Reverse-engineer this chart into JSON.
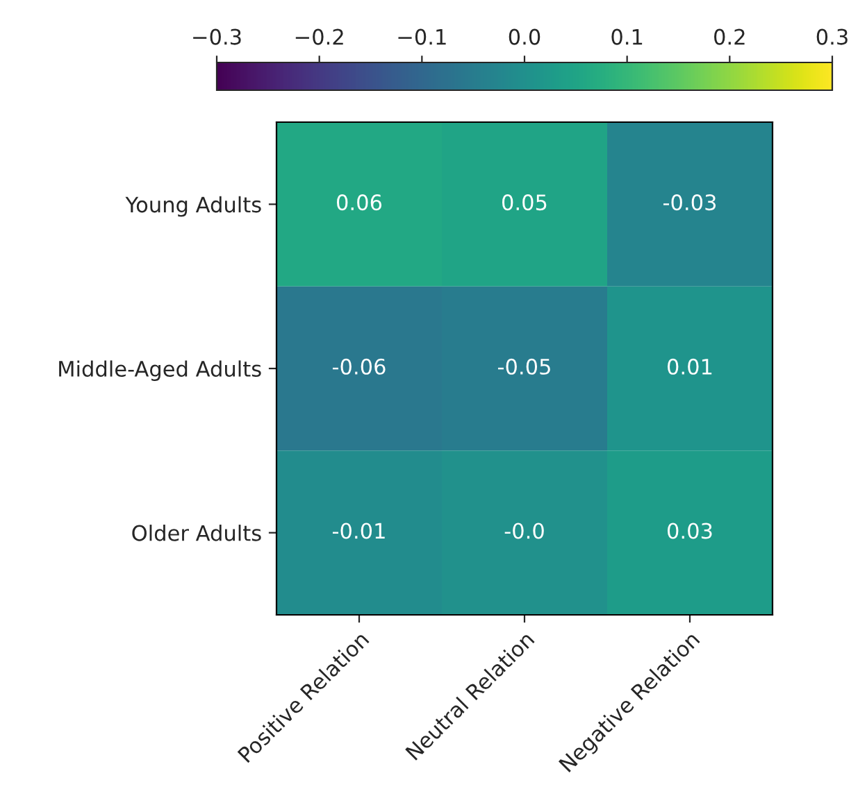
{
  "chart_data": {
    "type": "heatmap",
    "categories": [
      "Positive Relation",
      "Neutral Relation",
      "Negative Relation"
    ],
    "y_categories": [
      "Young Adults",
      "Middle-Aged Adults",
      "Older Adults"
    ],
    "cells": [
      [
        0.06,
        0.05,
        -0.03
      ],
      [
        -0.06,
        -0.05,
        0.01
      ],
      [
        -0.01,
        -0.0,
        0.03
      ]
    ],
    "cell_labels": [
      [
        "0.06",
        "0.05",
        "-0.03"
      ],
      [
        "-0.06",
        "-0.05",
        "0.01"
      ],
      [
        "-0.01",
        "-0.0",
        "0.03"
      ]
    ],
    "clim": [
      -0.3,
      0.3
    ],
    "cticks": [
      {
        "value": -0.3,
        "label": "−0.3"
      },
      {
        "value": -0.2,
        "label": "−0.2"
      },
      {
        "value": -0.1,
        "label": "−0.1"
      },
      {
        "value": 0,
        "label": "0.0"
      },
      0.1,
      0.2,
      0.3
    ]
  }
}
